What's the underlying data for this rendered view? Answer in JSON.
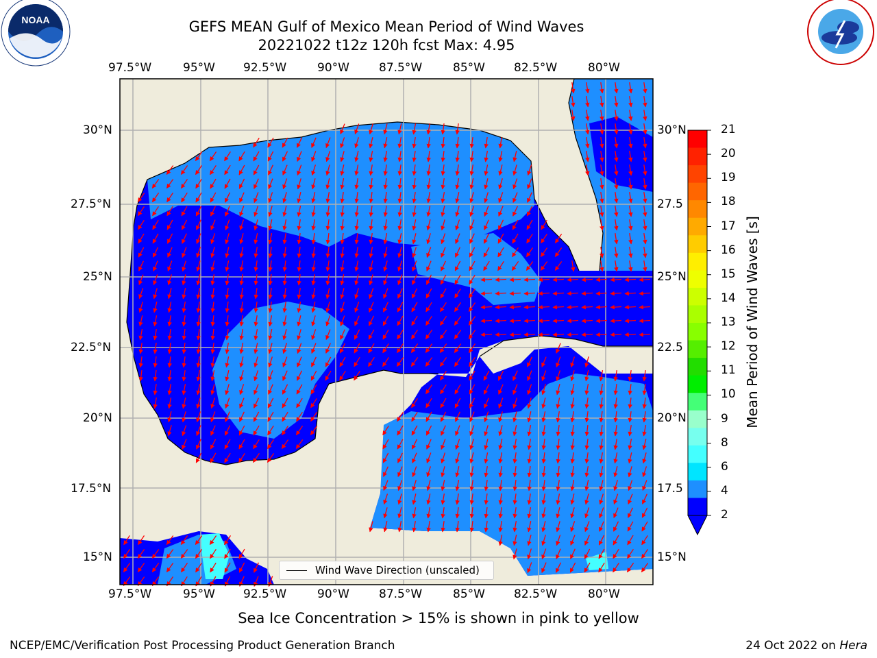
{
  "title": {
    "line1": "GEFS MEAN Gulf of Mexico Mean Period of Wind Waves",
    "line2": "20221022 t12z 120h fcst   Max: 4.95"
  },
  "logos": {
    "noaa_text": "NOAA",
    "noaa_ring": "NATIONAL OCEANIC AND ATMOSPHERIC ADMINISTRATION · U.S. DEPARTMENT OF COMMERCE",
    "nws_ring": "NATIONAL WEATHER SERVICE"
  },
  "axes": {
    "lon_labels": [
      "97.5°W",
      "95°W",
      "92.5°W",
      "90°W",
      "87.5°W",
      "85°W",
      "82.5°W",
      "80°W"
    ],
    "lat_labels": [
      "30°N",
      "27.5°N",
      "25°N",
      "22.5°N",
      "20°N",
      "17.5°N",
      "15°N"
    ],
    "lat_labels_right": [
      "30°N",
      "27.5",
      "25°N",
      "22.5",
      "20°N",
      "17.5",
      "15°N"
    ]
  },
  "colorbar": {
    "label": "Mean Period of Wind Waves [s]",
    "ticks": [
      "21",
      "20",
      "19",
      "18",
      "17",
      "16",
      "15",
      "14",
      "13",
      "12",
      "11",
      "10",
      "9",
      "8",
      "6",
      "4",
      "2"
    ],
    "colors": [
      "#ff0000",
      "#ff2200",
      "#ff4400",
      "#ff6600",
      "#ff8800",
      "#ffaa00",
      "#ffcc00",
      "#ffee00",
      "#eeff00",
      "#ccff00",
      "#aaff00",
      "#88ff00",
      "#55ee00",
      "#22dd00",
      "#00ee00",
      "#44ff77",
      "#99ffcc",
      "#77ffee",
      "#44ffff",
      "#00e5ff",
      "#1e8fff",
      "#0000ff"
    ]
  },
  "legend": {
    "label": "Wind Wave Direction (unscaled)"
  },
  "colors": {
    "land": "#efecdc",
    "water_low": "#0000ff",
    "water_mid": "#1e8fff",
    "water_cyan": "#44ffff",
    "arrow": "#ff0000",
    "grid": "#b0b0b0"
  },
  "footer": {
    "caption": "Sea Ice Concentration > 15% is shown in pink to yellow",
    "left": "NCEP/EMC/Verification Post Processing Product Generation Branch",
    "right_date": "24 Oct 2022 on",
    "right_host": "Hera"
  }
}
